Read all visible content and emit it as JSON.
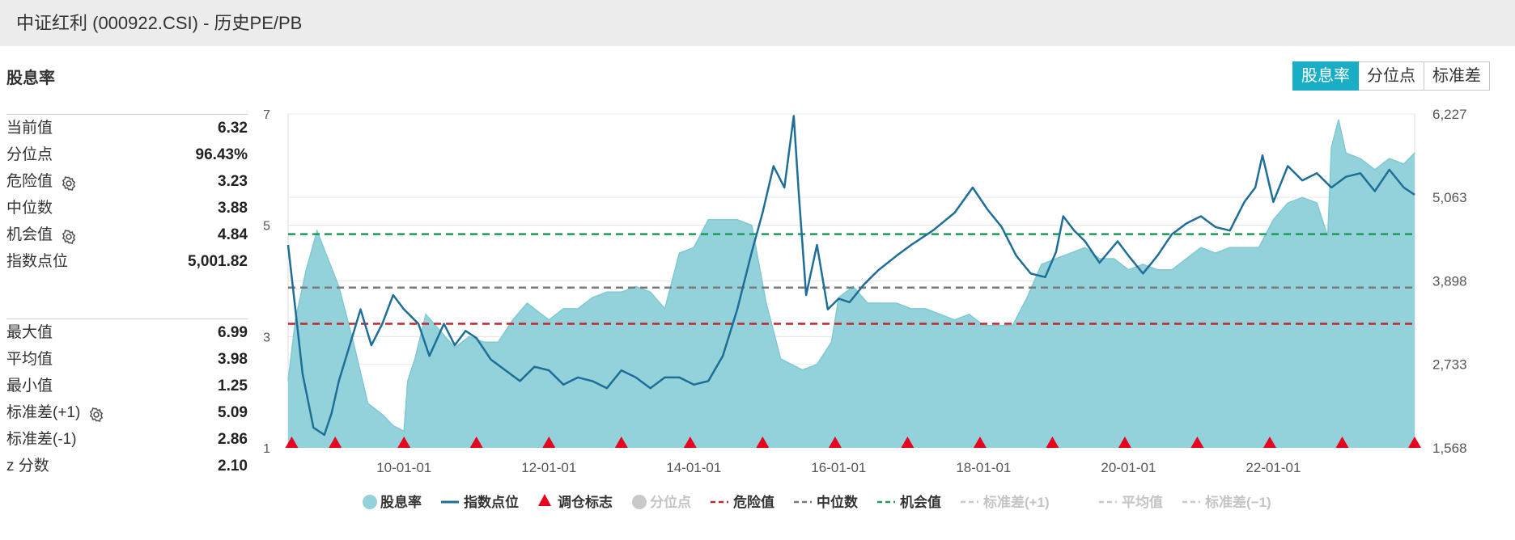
{
  "window": {
    "title": "中证红利 (000922.CSI) - 历史PE/PB"
  },
  "section": {
    "title": "股息率"
  },
  "toggle": {
    "buttons": [
      "股息率",
      "分位点",
      "标准差"
    ],
    "active_index": 0
  },
  "stats_current": [
    {
      "label": "当前值",
      "value": "6.32",
      "gear": false
    },
    {
      "label": "分位点",
      "value": "96.43%",
      "gear": false
    },
    {
      "label": "危险值",
      "value": "3.23",
      "gear": true
    },
    {
      "label": "中位数",
      "value": "3.88",
      "gear": false
    },
    {
      "label": "机会值",
      "value": "4.84",
      "gear": true
    },
    {
      "label": "指数点位",
      "value": "5,001.82",
      "gear": false
    }
  ],
  "stats_history": [
    {
      "label": "最大值",
      "value": "6.99",
      "gear": false
    },
    {
      "label": "平均值",
      "value": "3.98",
      "gear": false
    },
    {
      "label": "最小值",
      "value": "1.25",
      "gear": false
    },
    {
      "label": "标准差(+1)",
      "value": "5.09",
      "gear": true
    },
    {
      "label": "标准差(-1)",
      "value": "2.86",
      "gear": false
    },
    {
      "label": "z 分数",
      "value": "2.10",
      "gear": false
    }
  ],
  "colors": {
    "yield_fill": "#93d2da",
    "yield_line": "#7fc9d2",
    "index_line": "#1e6e9a",
    "marker": "#e8001c",
    "danger": "#c0282c",
    "median": "#7a7a7a",
    "opportunity": "#1f9a5a",
    "disabled": "#c8c8c8",
    "accent": "#1aaec6"
  },
  "chart_data": {
    "type": "area",
    "x_tick_labels": [
      "10-01-01",
      "12-01-01",
      "14-01-01",
      "16-01-01",
      "18-01-01",
      "20-01-01",
      "22-01-01"
    ],
    "x_tick_dates": [
      2010.0,
      2012.0,
      2014.0,
      2016.0,
      2018.0,
      2020.0,
      2022.0
    ],
    "xlim": [
      2008.4,
      2023.95
    ],
    "y_left": {
      "ticks": [
        1,
        3,
        5,
        7
      ],
      "tick_labels": [
        "1",
        "3",
        "5",
        "7"
      ],
      "lim": [
        1,
        7
      ]
    },
    "y_right": {
      "ticks": [
        1568,
        2733,
        3898,
        5063,
        6227
      ],
      "tick_labels": [
        "1,568",
        "2,733",
        "3,898",
        "5,063",
        "6,227"
      ],
      "lim": [
        1568,
        6227
      ]
    },
    "grid": true,
    "series": [
      {
        "name": "股息率",
        "axis": "left",
        "style": "area",
        "x": [
          2008.4,
          2008.5,
          2008.65,
          2008.8,
          2008.95,
          2009.1,
          2009.3,
          2009.5,
          2009.7,
          2009.85,
          2010.0,
          2010.05,
          2010.15,
          2010.3,
          2010.5,
          2010.7,
          2010.9,
          2011.1,
          2011.3,
          2011.5,
          2011.7,
          2011.9,
          2012.0,
          2012.2,
          2012.4,
          2012.6,
          2012.8,
          2013.0,
          2013.2,
          2013.4,
          2013.6,
          2013.8,
          2014.0,
          2014.2,
          2014.4,
          2014.6,
          2014.8,
          2015.0,
          2015.2,
          2015.35,
          2015.5,
          2015.7,
          2015.9,
          2016.0,
          2016.2,
          2016.4,
          2016.6,
          2016.8,
          2017.0,
          2017.2,
          2017.4,
          2017.6,
          2017.8,
          2018.0,
          2018.2,
          2018.4,
          2018.6,
          2018.8,
          2019.0,
          2019.2,
          2019.4,
          2019.6,
          2019.8,
          2020.0,
          2020.2,
          2020.4,
          2020.6,
          2020.8,
          2021.0,
          2021.2,
          2021.4,
          2021.6,
          2021.8,
          2022.0,
          2022.2,
          2022.4,
          2022.6,
          2022.75,
          2022.8,
          2022.9,
          2023.0,
          2023.2,
          2023.4,
          2023.6,
          2023.8,
          2023.95
        ],
        "values": [
          2.2,
          3.3,
          4.2,
          4.9,
          4.4,
          3.9,
          2.9,
          1.8,
          1.6,
          1.4,
          1.3,
          2.2,
          2.6,
          3.4,
          3.1,
          2.8,
          3.0,
          2.9,
          2.9,
          3.3,
          3.6,
          3.4,
          3.3,
          3.5,
          3.5,
          3.7,
          3.8,
          3.8,
          3.9,
          3.8,
          3.5,
          4.5,
          4.6,
          5.1,
          5.1,
          5.1,
          5.0,
          3.6,
          2.6,
          2.5,
          2.4,
          2.5,
          2.9,
          3.7,
          3.9,
          3.6,
          3.6,
          3.6,
          3.5,
          3.5,
          3.4,
          3.3,
          3.4,
          3.2,
          3.2,
          3.2,
          3.7,
          4.3,
          4.4,
          4.5,
          4.6,
          4.4,
          4.4,
          4.2,
          4.3,
          4.2,
          4.2,
          4.4,
          4.6,
          4.5,
          4.6,
          4.6,
          4.6,
          5.1,
          5.4,
          5.5,
          5.4,
          4.8,
          6.4,
          6.9,
          6.3,
          6.2,
          6.0,
          6.2,
          6.1,
          6.3
        ]
      },
      {
        "name": "指数点位",
        "axis": "right",
        "style": "line",
        "x": [
          2008.4,
          2008.5,
          2008.6,
          2008.75,
          2008.9,
          2009.0,
          2009.1,
          2009.25,
          2009.4,
          2009.55,
          2009.7,
          2009.85,
          2010.0,
          2010.2,
          2010.35,
          2010.55,
          2010.7,
          2010.85,
          2011.0,
          2011.2,
          2011.4,
          2011.6,
          2011.8,
          2012.0,
          2012.2,
          2012.4,
          2012.6,
          2012.8,
          2013.0,
          2013.2,
          2013.4,
          2013.6,
          2013.8,
          2014.0,
          2014.2,
          2014.4,
          2014.6,
          2014.8,
          2014.95,
          2015.1,
          2015.25,
          2015.38,
          2015.45,
          2015.55,
          2015.7,
          2015.85,
          2016.0,
          2016.15,
          2016.35,
          2016.55,
          2016.8,
          2017.0,
          2017.3,
          2017.6,
          2017.85,
          2018.05,
          2018.25,
          2018.45,
          2018.65,
          2018.85,
          2019.0,
          2019.1,
          2019.25,
          2019.4,
          2019.6,
          2019.85,
          2020.0,
          2020.2,
          2020.4,
          2020.6,
          2020.8,
          2021.0,
          2021.2,
          2021.4,
          2021.6,
          2021.75,
          2021.85,
          2022.0,
          2022.2,
          2022.4,
          2022.6,
          2022.8,
          2023.0,
          2023.2,
          2023.4,
          2023.6,
          2023.8,
          2023.95
        ],
        "values": [
          4400,
          3500,
          2600,
          1850,
          1750,
          2050,
          2500,
          3000,
          3500,
          3000,
          3300,
          3700,
          3500,
          3300,
          2850,
          3300,
          3000,
          3200,
          3100,
          2800,
          2650,
          2500,
          2700,
          2650,
          2450,
          2550,
          2500,
          2400,
          2650,
          2550,
          2400,
          2550,
          2550,
          2450,
          2500,
          2850,
          3500,
          4300,
          4850,
          5500,
          5200,
          6200,
          5100,
          3700,
          4400,
          3500,
          3650,
          3600,
          3850,
          4050,
          4250,
          4400,
          4600,
          4850,
          5200,
          4900,
          4650,
          4250,
          4000,
          3950,
          4300,
          4800,
          4600,
          4450,
          4150,
          4450,
          4250,
          4000,
          4250,
          4550,
          4700,
          4800,
          4650,
          4600,
          5000,
          5200,
          5650,
          5000,
          5500,
          5300,
          5400,
          5200,
          5350,
          5400,
          5150,
          5450,
          5200,
          5100
        ]
      },
      {
        "name": "调仓标志",
        "style": "markers",
        "x": [
          2008.45,
          2009.05,
          2010.0,
          2011.0,
          2012.0,
          2013.0,
          2013.95,
          2014.95,
          2015.95,
          2016.95,
          2017.95,
          2018.95,
          2019.95,
          2020.95,
          2021.95,
          2022.95,
          2023.95
        ]
      },
      {
        "name": "分位点",
        "style": "disabled"
      },
      {
        "name": "危险值",
        "axis": "left",
        "style": "hline",
        "value": 3.23
      },
      {
        "name": "中位数",
        "axis": "left",
        "style": "hline",
        "value": 3.88
      },
      {
        "name": "机会值",
        "axis": "left",
        "style": "hline",
        "value": 4.84
      },
      {
        "name": "标准差(+1)",
        "style": "disabled"
      },
      {
        "name": "平均值",
        "style": "disabled"
      },
      {
        "name": "标准差(-1)",
        "style": "disabled"
      }
    ],
    "legend": {
      "placement": "bottom",
      "items": [
        {
          "label": "股息率",
          "kind": "dot",
          "enabled": true,
          "color_key": "yield_fill"
        },
        {
          "label": "指数点位",
          "kind": "line",
          "enabled": true,
          "color_key": "index_line"
        },
        {
          "label": "调仓标志",
          "kind": "triangle",
          "enabled": true,
          "color_key": "marker"
        },
        {
          "label": "分位点",
          "kind": "dot",
          "enabled": false,
          "color_key": "disabled"
        },
        {
          "label": "危险值",
          "kind": "dash",
          "enabled": true,
          "color_key": "danger"
        },
        {
          "label": "中位数",
          "kind": "dash",
          "enabled": true,
          "color_key": "median"
        },
        {
          "label": "机会值",
          "kind": "dash",
          "enabled": true,
          "color_key": "opportunity"
        },
        {
          "label": "标准差(+1)",
          "kind": "dash",
          "enabled": false,
          "color_key": "disabled"
        },
        {
          "label": "平均值",
          "kind": "dash",
          "enabled": false,
          "color_key": "disabled"
        },
        {
          "label": "标准差(−1)",
          "kind": "dash",
          "enabled": false,
          "color_key": "disabled"
        }
      ]
    }
  }
}
